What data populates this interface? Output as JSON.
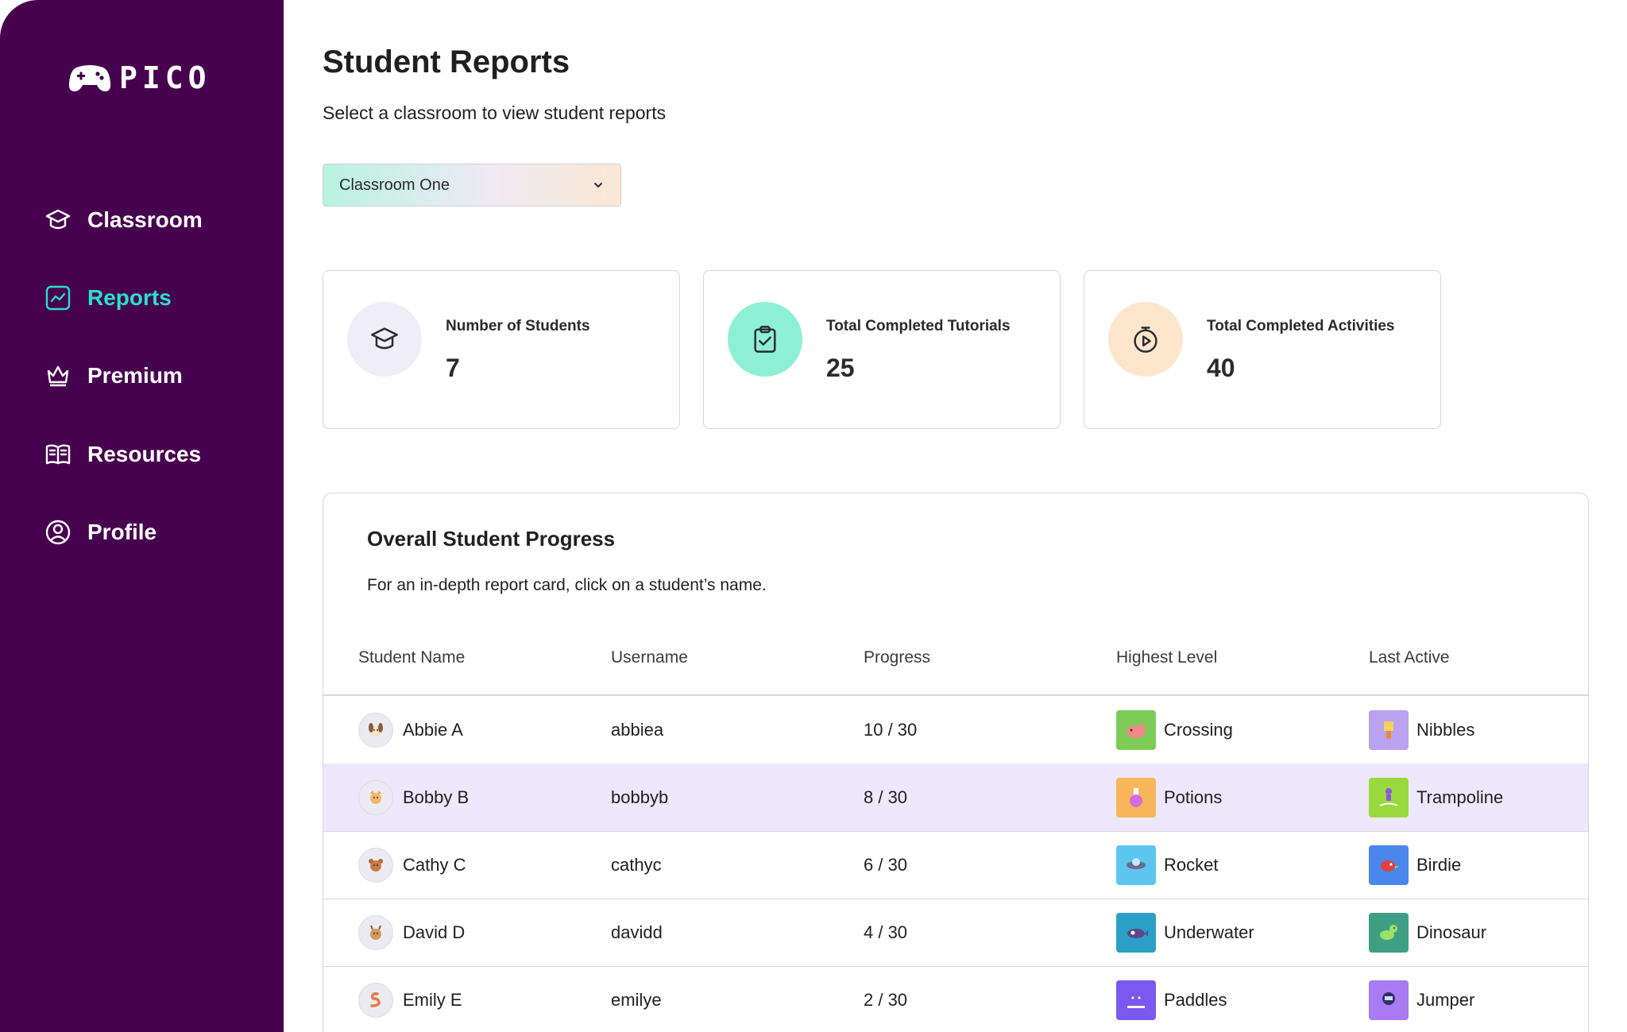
{
  "app": {
    "logo_text": "PICO"
  },
  "sidebar": {
    "items": [
      {
        "label": "Classroom",
        "icon": "graduation-cap-icon",
        "active": false
      },
      {
        "label": "Reports",
        "icon": "chart-icon",
        "active": true
      },
      {
        "label": "Premium",
        "icon": "crown-icon",
        "active": false
      },
      {
        "label": "Resources",
        "icon": "book-icon",
        "active": false
      },
      {
        "label": "Profile",
        "icon": "user-circle-icon",
        "active": false
      }
    ]
  },
  "header": {
    "title": "Student Reports",
    "subtitle": "Select a classroom to view student reports"
  },
  "classroom_select": {
    "value": "Classroom One"
  },
  "stats": [
    {
      "label": "Number of Students",
      "value": "7",
      "icon": "graduation-cap-icon",
      "color": "#efedf7"
    },
    {
      "label": "Total Completed Tutorials",
      "value": "25",
      "icon": "clipboard-check-icon",
      "color": "#8df0d4"
    },
    {
      "label": "Total Completed Activities",
      "value": "40",
      "icon": "stopwatch-play-icon",
      "color": "#fde6cc"
    }
  ],
  "progress": {
    "title": "Overall Student Progress",
    "description": "For an in-depth report card, click on a student’s name.",
    "columns": [
      "Student Name",
      "Username",
      "Progress",
      "Highest Level",
      "Last Active"
    ],
    "rows": [
      {
        "name": "Abbie A",
        "username": "abbiea",
        "progress": "10 / 30",
        "highest": "Crossing",
        "highest_color": "#7ecb5a",
        "last": "Nibbles",
        "last_color": "#b9a2f0",
        "avatar": "dog-avatar",
        "highlight": false
      },
      {
        "name": "Bobby B",
        "username": "bobbyb",
        "progress": "8 / 30",
        "highest": "Potions",
        "highest_color": "#f8b55a",
        "last": "Trampoline",
        "last_color": "#9ad93e",
        "avatar": "cat-avatar",
        "highlight": true
      },
      {
        "name": "Cathy C",
        "username": "cathyc",
        "progress": "6 / 30",
        "highest": "Rocket",
        "highest_color": "#5cc6ef",
        "last": "Birdie",
        "last_color": "#4a86ec",
        "avatar": "bear-avatar",
        "highlight": false
      },
      {
        "name": "David D",
        "username": "davidd",
        "progress": "4 / 30",
        "highest": "Underwater",
        "highest_color": "#2b9fc7",
        "last": "Dinosaur",
        "last_color": "#3f9f84",
        "avatar": "deer-avatar",
        "highlight": false
      },
      {
        "name": "Emily E",
        "username": "emilye",
        "progress": "2 / 30",
        "highest": "Paddles",
        "highest_color": "#7b58ef",
        "last": "Jumper",
        "last_color": "#a97af2",
        "avatar": "snake-avatar",
        "highlight": false
      }
    ]
  }
}
